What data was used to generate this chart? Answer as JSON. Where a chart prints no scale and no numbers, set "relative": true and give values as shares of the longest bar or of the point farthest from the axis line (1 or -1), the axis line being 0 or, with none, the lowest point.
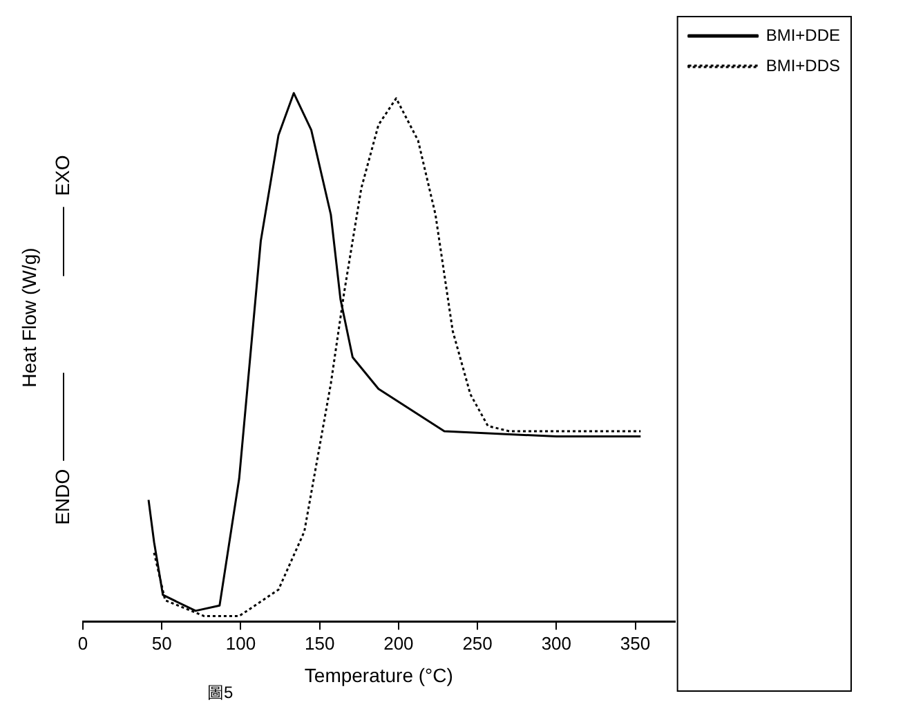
{
  "chart_data": {
    "type": "line",
    "relative": true,
    "xlabel": "Temperature (°C)",
    "ylabel": "Heat Flow (W/g)",
    "annotations": [
      "ENDO",
      "EXO",
      "圖5"
    ],
    "xlim": [
      0,
      375
    ],
    "xticks": [
      0,
      50,
      100,
      150,
      200,
      250,
      300,
      350
    ],
    "tick_labels": "x",
    "grid": false,
    "legend": "top right",
    "marker": "none",
    "series": [
      {
        "name": "BMI+DDE",
        "color": "#000000",
        "line_style": "solid",
        "x": [
          41.6,
          45.1,
          50.7,
          71.4,
          86.6,
          99.0,
          112.7,
          123.9,
          133.6,
          144.7,
          157.1,
          163.2,
          170.9,
          187.3,
          229.0,
          300,
          353.4
        ],
        "values": [
          0.23,
          0.15,
          0.05,
          0.02,
          0.03,
          0.27,
          0.72,
          0.92,
          1.0,
          0.93,
          0.77,
          0.61,
          0.5,
          0.44,
          0.36,
          0.35,
          0.35
        ]
      },
      {
        "name": "BMI+DDS",
        "color": "#000000",
        "line_style": "dotted",
        "x": [
          45.1,
          52.1,
          76.9,
          99.0,
          123.9,
          140.3,
          157.1,
          165.4,
          176.4,
          187.3,
          198.5,
          212.4,
          223.4,
          234.3,
          245.5,
          256.6,
          270.1,
          353.4
        ],
        "values": [
          0.13,
          0.04,
          0.01,
          0.01,
          0.06,
          0.17,
          0.45,
          0.62,
          0.82,
          0.94,
          0.99,
          0.91,
          0.77,
          0.55,
          0.43,
          0.37,
          0.36,
          0.36
        ]
      }
    ]
  }
}
